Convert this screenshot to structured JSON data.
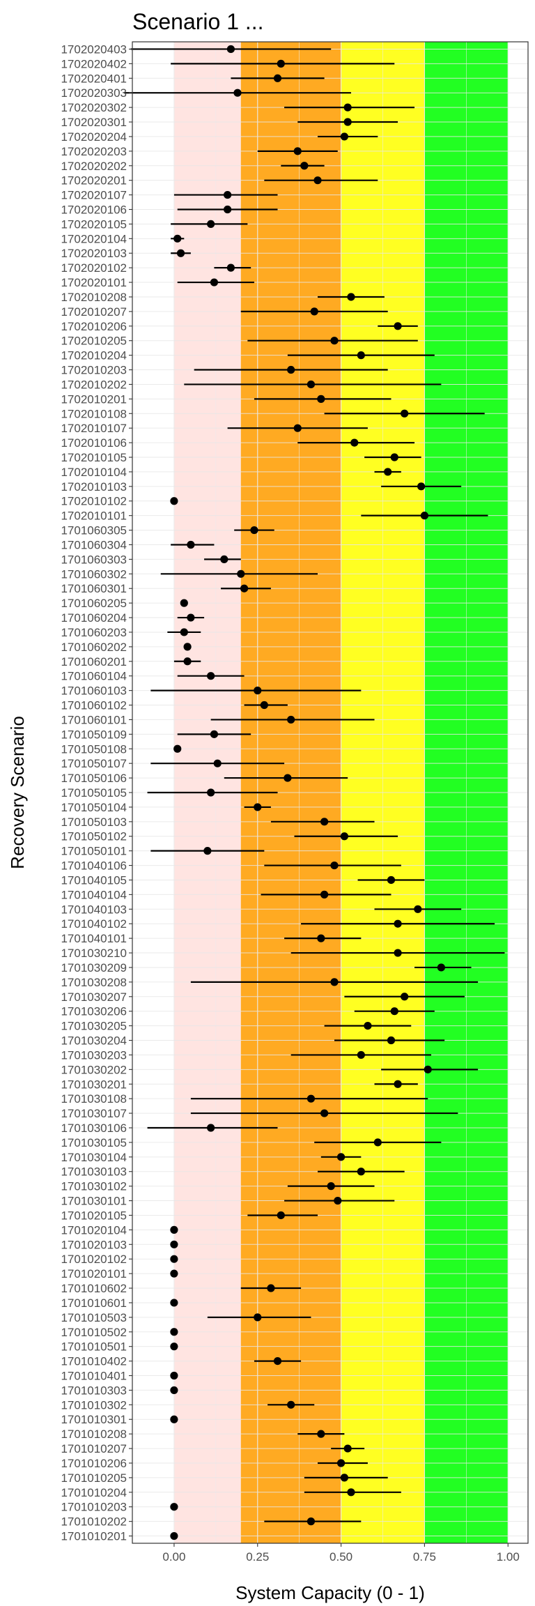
{
  "chart_data": {
    "type": "scatter",
    "title": "Scenario 1 ...",
    "xlabel": "System Capacity (0 - 1)",
    "ylabel": "Recovery Scenario",
    "xlim": [
      -0.125,
      1.06
    ],
    "x_ticks": [
      "0.00",
      "0.25",
      "0.50",
      "0.75",
      "1.00"
    ],
    "x_tick_values": [
      0,
      0.25,
      0.5,
      0.75,
      1.0
    ],
    "grid": true,
    "legend": "none",
    "bands": [
      {
        "from": 0.0,
        "to": 0.2,
        "color": "#FFE4E1"
      },
      {
        "from": 0.2,
        "to": 0.5,
        "color": "#FFAA22"
      },
      {
        "from": 0.5,
        "to": 0.75,
        "color": "#FFFF22"
      },
      {
        "from": 0.75,
        "to": 1.0,
        "color": "#22FF22"
      }
    ],
    "point_color": "#000000",
    "points": [
      {
        "label": "1702020403",
        "x": 0.17,
        "lo": -0.13,
        "hi": 0.47
      },
      {
        "label": "1702020402",
        "x": 0.32,
        "lo": -0.01,
        "hi": 0.66
      },
      {
        "label": "1702020401",
        "x": 0.31,
        "lo": 0.17,
        "hi": 0.45
      },
      {
        "label": "1702020303",
        "x": 0.19,
        "lo": -0.15,
        "hi": 0.53
      },
      {
        "label": "1702020302",
        "x": 0.52,
        "lo": 0.33,
        "hi": 0.72
      },
      {
        "label": "1702020301",
        "x": 0.52,
        "lo": 0.37,
        "hi": 0.67
      },
      {
        "label": "1702020204",
        "x": 0.51,
        "lo": 0.43,
        "hi": 0.61
      },
      {
        "label": "1702020203",
        "x": 0.37,
        "lo": 0.25,
        "hi": 0.49
      },
      {
        "label": "1702020202",
        "x": 0.39,
        "lo": 0.32,
        "hi": 0.45
      },
      {
        "label": "1702020201",
        "x": 0.43,
        "lo": 0.27,
        "hi": 0.61
      },
      {
        "label": "1702020107",
        "x": 0.16,
        "lo": 0.0,
        "hi": 0.31
      },
      {
        "label": "1702020106",
        "x": 0.16,
        "lo": 0.01,
        "hi": 0.31
      },
      {
        "label": "1702020105",
        "x": 0.11,
        "lo": -0.01,
        "hi": 0.22
      },
      {
        "label": "1702020104",
        "x": 0.01,
        "lo": -0.01,
        "hi": 0.03
      },
      {
        "label": "1702020103",
        "x": 0.02,
        "lo": -0.01,
        "hi": 0.05
      },
      {
        "label": "1702020102",
        "x": 0.17,
        "lo": 0.12,
        "hi": 0.23
      },
      {
        "label": "1702020101",
        "x": 0.12,
        "lo": 0.01,
        "hi": 0.24
      },
      {
        "label": "1702010208",
        "x": 0.53,
        "lo": 0.43,
        "hi": 0.63
      },
      {
        "label": "1702010207",
        "x": 0.42,
        "lo": 0.2,
        "hi": 0.64
      },
      {
        "label": "1702010206",
        "x": 0.67,
        "lo": 0.61,
        "hi": 0.73
      },
      {
        "label": "1702010205",
        "x": 0.48,
        "lo": 0.22,
        "hi": 0.73
      },
      {
        "label": "1702010204",
        "x": 0.56,
        "lo": 0.34,
        "hi": 0.78
      },
      {
        "label": "1702010203",
        "x": 0.35,
        "lo": 0.06,
        "hi": 0.64
      },
      {
        "label": "1702010202",
        "x": 0.41,
        "lo": 0.03,
        "hi": 0.8
      },
      {
        "label": "1702010201",
        "x": 0.44,
        "lo": 0.24,
        "hi": 0.65
      },
      {
        "label": "1702010108",
        "x": 0.69,
        "lo": 0.45,
        "hi": 0.93
      },
      {
        "label": "1702010107",
        "x": 0.37,
        "lo": 0.16,
        "hi": 0.58
      },
      {
        "label": "1702010106",
        "x": 0.54,
        "lo": 0.37,
        "hi": 0.72
      },
      {
        "label": "1702010105",
        "x": 0.66,
        "lo": 0.57,
        "hi": 0.74
      },
      {
        "label": "1702010104",
        "x": 0.64,
        "lo": 0.6,
        "hi": 0.68
      },
      {
        "label": "1702010103",
        "x": 0.74,
        "lo": 0.62,
        "hi": 0.86
      },
      {
        "label": "1702010102",
        "x": 0.0,
        "lo": 0.0,
        "hi": 0.0
      },
      {
        "label": "1702010101",
        "x": 0.75,
        "lo": 0.56,
        "hi": 0.94
      },
      {
        "label": "1701060305",
        "x": 0.24,
        "lo": 0.18,
        "hi": 0.3
      },
      {
        "label": "1701060304",
        "x": 0.05,
        "lo": -0.01,
        "hi": 0.12
      },
      {
        "label": "1701060303",
        "x": 0.15,
        "lo": 0.09,
        "hi": 0.2
      },
      {
        "label": "1701060302",
        "x": 0.2,
        "lo": -0.04,
        "hi": 0.43
      },
      {
        "label": "1701060301",
        "x": 0.21,
        "lo": 0.14,
        "hi": 0.29
      },
      {
        "label": "1701060205",
        "x": 0.03,
        "lo": 0.02,
        "hi": 0.04
      },
      {
        "label": "1701060204",
        "x": 0.05,
        "lo": 0.01,
        "hi": 0.09
      },
      {
        "label": "1701060203",
        "x": 0.03,
        "lo": -0.02,
        "hi": 0.08
      },
      {
        "label": "1701060202",
        "x": 0.04,
        "lo": 0.03,
        "hi": 0.05
      },
      {
        "label": "1701060201",
        "x": 0.04,
        "lo": 0.0,
        "hi": 0.08
      },
      {
        "label": "1701060104",
        "x": 0.11,
        "lo": 0.01,
        "hi": 0.21
      },
      {
        "label": "1701060103",
        "x": 0.25,
        "lo": -0.07,
        "hi": 0.56
      },
      {
        "label": "1701060102",
        "x": 0.27,
        "lo": 0.21,
        "hi": 0.34
      },
      {
        "label": "1701060101",
        "x": 0.35,
        "lo": 0.11,
        "hi": 0.6
      },
      {
        "label": "1701050109",
        "x": 0.12,
        "lo": 0.01,
        "hi": 0.23
      },
      {
        "label": "1701050108",
        "x": 0.01,
        "lo": 0.01,
        "hi": 0.01
      },
      {
        "label": "1701050107",
        "x": 0.13,
        "lo": -0.07,
        "hi": 0.33
      },
      {
        "label": "1701050106",
        "x": 0.34,
        "lo": 0.15,
        "hi": 0.52
      },
      {
        "label": "1701050105",
        "x": 0.11,
        "lo": -0.08,
        "hi": 0.31
      },
      {
        "label": "1701050104",
        "x": 0.25,
        "lo": 0.21,
        "hi": 0.29
      },
      {
        "label": "1701050103",
        "x": 0.45,
        "lo": 0.29,
        "hi": 0.6
      },
      {
        "label": "1701050102",
        "x": 0.51,
        "lo": 0.36,
        "hi": 0.67
      },
      {
        "label": "1701050101",
        "x": 0.1,
        "lo": -0.07,
        "hi": 0.27
      },
      {
        "label": "1701040106",
        "x": 0.48,
        "lo": 0.27,
        "hi": 0.68
      },
      {
        "label": "1701040105",
        "x": 0.65,
        "lo": 0.55,
        "hi": 0.75
      },
      {
        "label": "1701040104",
        "x": 0.45,
        "lo": 0.26,
        "hi": 0.65
      },
      {
        "label": "1701040103",
        "x": 0.73,
        "lo": 0.6,
        "hi": 0.86
      },
      {
        "label": "1701040102",
        "x": 0.67,
        "lo": 0.38,
        "hi": 0.96
      },
      {
        "label": "1701040101",
        "x": 0.44,
        "lo": 0.33,
        "hi": 0.56
      },
      {
        "label": "1701030210",
        "x": 0.67,
        "lo": 0.35,
        "hi": 0.99
      },
      {
        "label": "1701030209",
        "x": 0.8,
        "lo": 0.72,
        "hi": 0.89
      },
      {
        "label": "1701030208",
        "x": 0.48,
        "lo": 0.05,
        "hi": 0.91
      },
      {
        "label": "1701030207",
        "x": 0.69,
        "lo": 0.51,
        "hi": 0.87
      },
      {
        "label": "1701030206",
        "x": 0.66,
        "lo": 0.54,
        "hi": 0.78
      },
      {
        "label": "1701030205",
        "x": 0.58,
        "lo": 0.45,
        "hi": 0.71
      },
      {
        "label": "1701030204",
        "x": 0.65,
        "lo": 0.48,
        "hi": 0.81
      },
      {
        "label": "1701030203",
        "x": 0.56,
        "lo": 0.35,
        "hi": 0.77
      },
      {
        "label": "1701030202",
        "x": 0.76,
        "lo": 0.62,
        "hi": 0.91
      },
      {
        "label": "1701030201",
        "x": 0.67,
        "lo": 0.6,
        "hi": 0.73
      },
      {
        "label": "1701030108",
        "x": 0.41,
        "lo": 0.05,
        "hi": 0.76
      },
      {
        "label": "1701030107",
        "x": 0.45,
        "lo": 0.05,
        "hi": 0.85
      },
      {
        "label": "1701030106",
        "x": 0.11,
        "lo": -0.08,
        "hi": 0.31
      },
      {
        "label": "1701030105",
        "x": 0.61,
        "lo": 0.42,
        "hi": 0.8
      },
      {
        "label": "1701030104",
        "x": 0.5,
        "lo": 0.44,
        "hi": 0.56
      },
      {
        "label": "1701030103",
        "x": 0.56,
        "lo": 0.43,
        "hi": 0.69
      },
      {
        "label": "1701030102",
        "x": 0.47,
        "lo": 0.34,
        "hi": 0.6
      },
      {
        "label": "1701030101",
        "x": 0.49,
        "lo": 0.33,
        "hi": 0.66
      },
      {
        "label": "1701020105",
        "x": 0.32,
        "lo": 0.22,
        "hi": 0.43
      },
      {
        "label": "1701020104",
        "x": 0.0,
        "lo": 0.0,
        "hi": 0.0
      },
      {
        "label": "1701020103",
        "x": 0.0,
        "lo": 0.0,
        "hi": 0.0
      },
      {
        "label": "1701020102",
        "x": 0.0,
        "lo": 0.0,
        "hi": 0.0
      },
      {
        "label": "1701020101",
        "x": 0.0,
        "lo": 0.0,
        "hi": 0.0
      },
      {
        "label": "1701010602",
        "x": 0.29,
        "lo": 0.2,
        "hi": 0.38
      },
      {
        "label": "1701010601",
        "x": 0.0,
        "lo": 0.0,
        "hi": 0.0
      },
      {
        "label": "1701010503",
        "x": 0.25,
        "lo": 0.1,
        "hi": 0.41
      },
      {
        "label": "1701010502",
        "x": 0.0,
        "lo": 0.0,
        "hi": 0.0
      },
      {
        "label": "1701010501",
        "x": 0.0,
        "lo": 0.0,
        "hi": 0.0
      },
      {
        "label": "1701010402",
        "x": 0.31,
        "lo": 0.24,
        "hi": 0.38
      },
      {
        "label": "1701010401",
        "x": 0.0,
        "lo": 0.0,
        "hi": 0.0
      },
      {
        "label": "1701010303",
        "x": 0.0,
        "lo": 0.0,
        "hi": 0.0
      },
      {
        "label": "1701010302",
        "x": 0.35,
        "lo": 0.28,
        "hi": 0.42
      },
      {
        "label": "1701010301",
        "x": 0.0,
        "lo": 0.0,
        "hi": 0.0
      },
      {
        "label": "1701010208",
        "x": 0.44,
        "lo": 0.37,
        "hi": 0.51
      },
      {
        "label": "1701010207",
        "x": 0.52,
        "lo": 0.47,
        "hi": 0.57
      },
      {
        "label": "1701010206",
        "x": 0.5,
        "lo": 0.43,
        "hi": 0.58
      },
      {
        "label": "1701010205",
        "x": 0.51,
        "lo": 0.39,
        "hi": 0.64
      },
      {
        "label": "1701010204",
        "x": 0.53,
        "lo": 0.39,
        "hi": 0.68
      },
      {
        "label": "1701010203",
        "x": 0.0,
        "lo": 0.0,
        "hi": 0.0
      },
      {
        "label": "1701010202",
        "x": 0.41,
        "lo": 0.27,
        "hi": 0.56
      },
      {
        "label": "1701010201",
        "x": 0.0,
        "lo": 0.0,
        "hi": 0.0
      }
    ]
  }
}
